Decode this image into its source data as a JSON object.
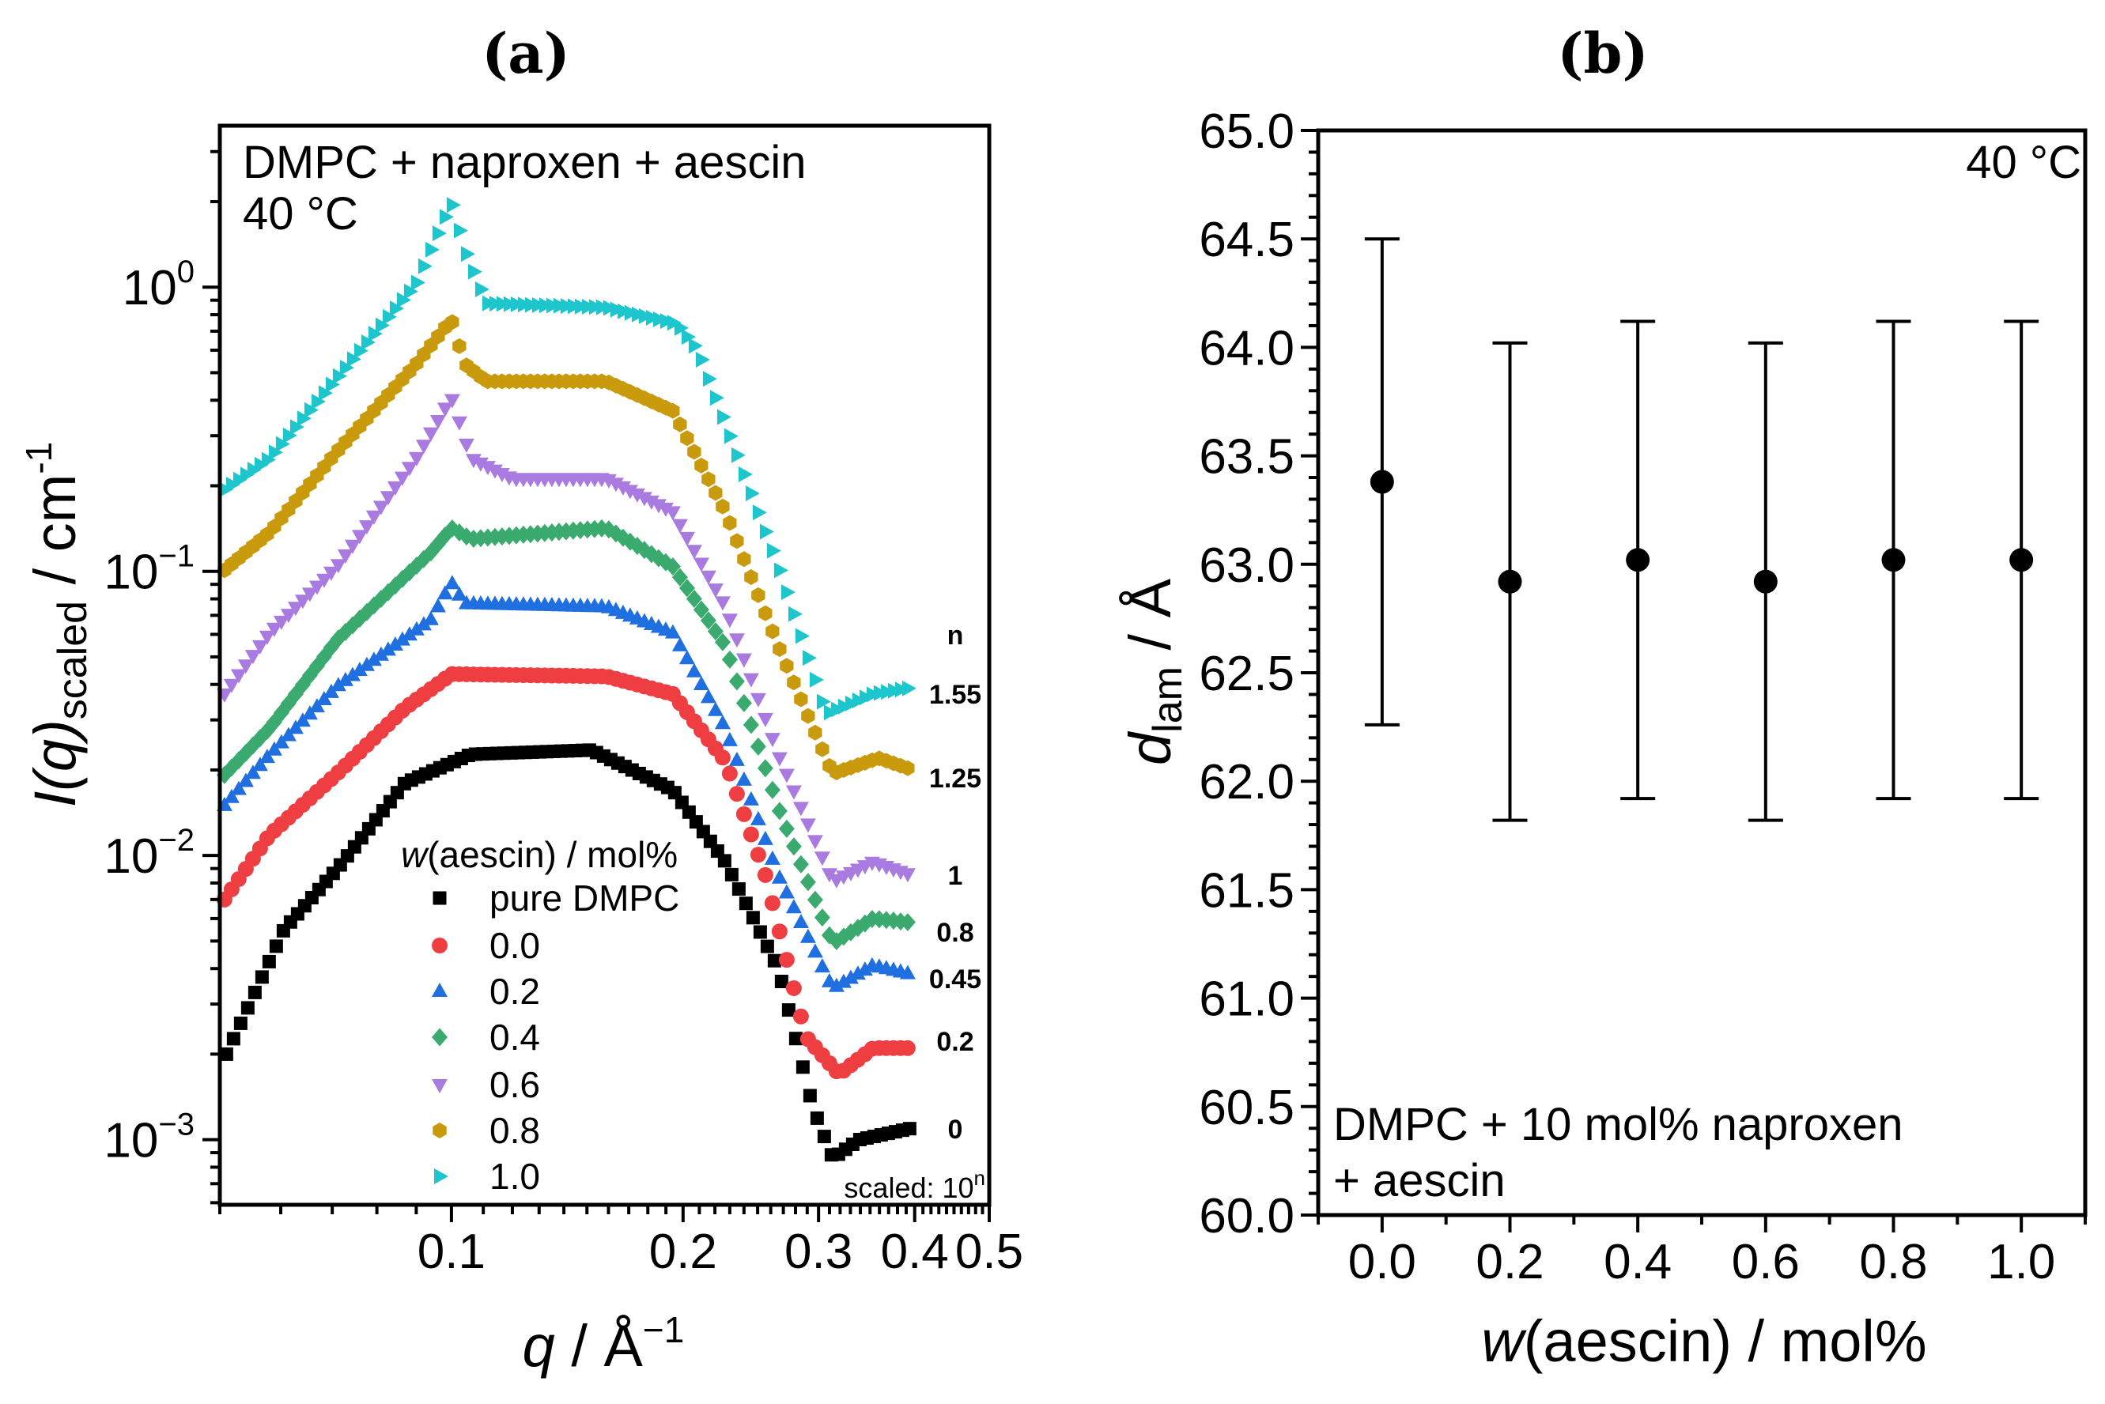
{
  "chart_data": [
    {
      "type": "scatter",
      "panel_label": "(a)",
      "xscale": "log",
      "yscale": "log",
      "xlim": [
        0.05,
        0.5
      ],
      "ylim": [
        0.00059,
        3.7
      ],
      "xlabel": {
        "main": "q",
        "rest": " / Å",
        "sup": "−1"
      },
      "ylabel": {
        "main": "I(q)",
        "sub": "scaled",
        "rest": " / cm",
        "sup": "-1"
      },
      "xticks": [
        {
          "value": 0.1,
          "label": "0.1"
        },
        {
          "value": 0.2,
          "label": "0.2"
        },
        {
          "value": 0.3,
          "label": "0.3"
        },
        {
          "value": 0.4,
          "label": "0.4"
        },
        {
          "value": 0.5,
          "label": "0.5"
        }
      ],
      "yticks": [
        {
          "value": 1,
          "base": "10",
          "exp": "0"
        },
        {
          "value": 0.1,
          "base": "10",
          "exp": "−1"
        },
        {
          "value": 0.01,
          "base": "10",
          "exp": "−2"
        },
        {
          "value": 0.001,
          "base": "10",
          "exp": "−3"
        }
      ],
      "annotation": [
        "DMPC + naproxen + aescin",
        "40 °C"
      ],
      "legend": {
        "title_italic": "w",
        "title_rest": "(aescin) / mol%",
        "placement": "bottom-center"
      },
      "scale_header": "n",
      "scale_note": {
        "text": "scaled: 10",
        "sup": "n"
      },
      "series": [
        {
          "name": "pure DMPC",
          "n": "0",
          "color": "#000000",
          "marker": "square",
          "points": [
            [
              0.051,
              0.002
            ],
            [
              0.0606,
              0.0055
            ],
            [
              0.0711,
              0.009
            ],
            [
              0.087,
              0.018
            ],
            [
              0.106,
              0.0227
            ],
            [
              0.152,
              0.0235
            ],
            [
              0.194,
              0.017
            ],
            [
              0.227,
              0.0095
            ],
            [
              0.266,
              0.004
            ],
            [
              0.295,
              0.0013
            ],
            [
              0.313,
              0.00086
            ],
            [
              0.339,
              0.001
            ],
            [
              0.398,
              0.0011
            ]
          ]
        },
        {
          "name": "0.0",
          "n": "0.2",
          "color": "#ef3e42",
          "marker": "circle",
          "points": [
            [
              0.0507,
              0.007
            ],
            [
              0.058,
              0.0118
            ],
            [
              0.071,
              0.0194
            ],
            [
              0.087,
              0.033
            ],
            [
              0.1,
              0.0435
            ],
            [
              0.159,
              0.0427
            ],
            [
              0.194,
              0.037
            ],
            [
              0.227,
              0.0215
            ],
            [
              0.256,
              0.0085
            ],
            [
              0.289,
              0.0023
            ],
            [
              0.319,
              0.0017
            ],
            [
              0.353,
              0.0021
            ],
            [
              0.398,
              0.0021
            ]
          ]
        },
        {
          "name": "0.2",
          "n": "0.45",
          "color": "#1f6fe0",
          "marker": "triangle-up",
          "points": [
            [
              0.0507,
              0.015
            ],
            [
              0.058,
              0.0226
            ],
            [
              0.071,
              0.0393
            ],
            [
              0.094,
              0.0675
            ],
            [
              0.1,
              0.0915
            ],
            [
              0.104,
              0.077
            ],
            [
              0.159,
              0.075
            ],
            [
              0.194,
              0.0607
            ],
            [
              0.227,
              0.028
            ],
            [
              0.266,
              0.0085
            ],
            [
              0.313,
              0.0034
            ],
            [
              0.353,
              0.0041
            ],
            [
              0.398,
              0.0038
            ]
          ]
        },
        {
          "name": "0.4",
          "n": "0.8",
          "color": "#3aaa6e",
          "marker": "diamond",
          "points": [
            [
              0.0507,
              0.0192
            ],
            [
              0.058,
              0.028
            ],
            [
              0.071,
              0.0574
            ],
            [
              0.094,
              0.1165
            ],
            [
              0.1,
              0.142
            ],
            [
              0.106,
              0.13
            ],
            [
              0.159,
              0.142
            ],
            [
              0.194,
              0.104
            ],
            [
              0.227,
              0.0545
            ],
            [
              0.266,
              0.0147
            ],
            [
              0.313,
              0.0049
            ],
            [
              0.353,
              0.006
            ],
            [
              0.398,
              0.0058
            ]
          ]
        },
        {
          "name": "0.6",
          "n": "1",
          "color": "#a97be0",
          "marker": "triangle-down",
          "points": [
            [
              0.0507,
              0.037
            ],
            [
              0.058,
              0.0606
            ],
            [
              0.071,
              0.104
            ],
            [
              0.09,
              0.25
            ],
            [
              0.1,
              0.41
            ],
            [
              0.106,
              0.25
            ],
            [
              0.12,
              0.212
            ],
            [
              0.159,
              0.212
            ],
            [
              0.194,
              0.162
            ],
            [
              0.227,
              0.075
            ],
            [
              0.266,
              0.0226
            ],
            [
              0.313,
              0.0081
            ],
            [
              0.353,
              0.0095
            ],
            [
              0.398,
              0.0085
            ]
          ]
        },
        {
          "name": "0.8",
          "n": "1.25",
          "color": "#c99a0c",
          "marker": "hexagon",
          "points": [
            [
              0.0507,
              0.101
            ],
            [
              0.058,
              0.137
            ],
            [
              0.071,
              0.264
            ],
            [
              0.09,
              0.537
            ],
            [
              0.1,
              0.77
            ],
            [
              0.104,
              0.537
            ],
            [
              0.111,
              0.466
            ],
            [
              0.159,
              0.466
            ],
            [
              0.194,
              0.367
            ],
            [
              0.227,
              0.162
            ],
            [
              0.266,
              0.0545
            ],
            [
              0.313,
              0.0194
            ],
            [
              0.359,
              0.022
            ],
            [
              0.398,
              0.02
            ]
          ]
        },
        {
          "name": "1.0",
          "n": "1.55",
          "color": "#1cc6cc",
          "marker": "triangle-right",
          "points": [
            [
              0.0507,
              0.194
            ],
            [
              0.058,
              0.25
            ],
            [
              0.071,
              0.48
            ],
            [
              0.09,
              1.03
            ],
            [
              0.1,
              1.99
            ],
            [
              0.104,
              1.36
            ],
            [
              0.111,
              0.877
            ],
            [
              0.159,
              0.849
            ],
            [
              0.196,
              0.745
            ],
            [
              0.209,
              0.6
            ],
            [
              0.266,
              0.104
            ],
            [
              0.307,
              0.0315
            ],
            [
              0.353,
              0.037
            ],
            [
              0.398,
              0.039
            ]
          ]
        }
      ]
    },
    {
      "type": "scatter",
      "panel_label": "(b)",
      "xlim": [
        -0.1,
        1.1
      ],
      "ylim": [
        60.0,
        65.0
      ],
      "xlabel": {
        "main": "w",
        "rest": "(aescin) / mol%"
      },
      "ylabel": {
        "main": "d",
        "sub": "lam",
        "rest": " / Å"
      },
      "xticks": [
        "0.0",
        "0.2",
        "0.4",
        "0.6",
        "0.8",
        "1.0"
      ],
      "yticks": [
        "60.0",
        "60.5",
        "61.0",
        "61.5",
        "62.0",
        "62.5",
        "63.0",
        "63.5",
        "64.0",
        "64.5",
        "65.0"
      ],
      "annotation_top": "40 °C",
      "annotation_bottom": [
        "DMPC + 10 mol% naproxen",
        "+ aescin"
      ],
      "x": [
        0.0,
        0.2,
        0.4,
        0.6,
        0.8,
        1.0
      ],
      "y": [
        63.38,
        62.92,
        63.02,
        62.92,
        63.02,
        63.02
      ],
      "yerr": [
        1.12,
        1.1,
        1.1,
        1.1,
        1.1,
        1.1
      ],
      "color": "#000000"
    }
  ]
}
